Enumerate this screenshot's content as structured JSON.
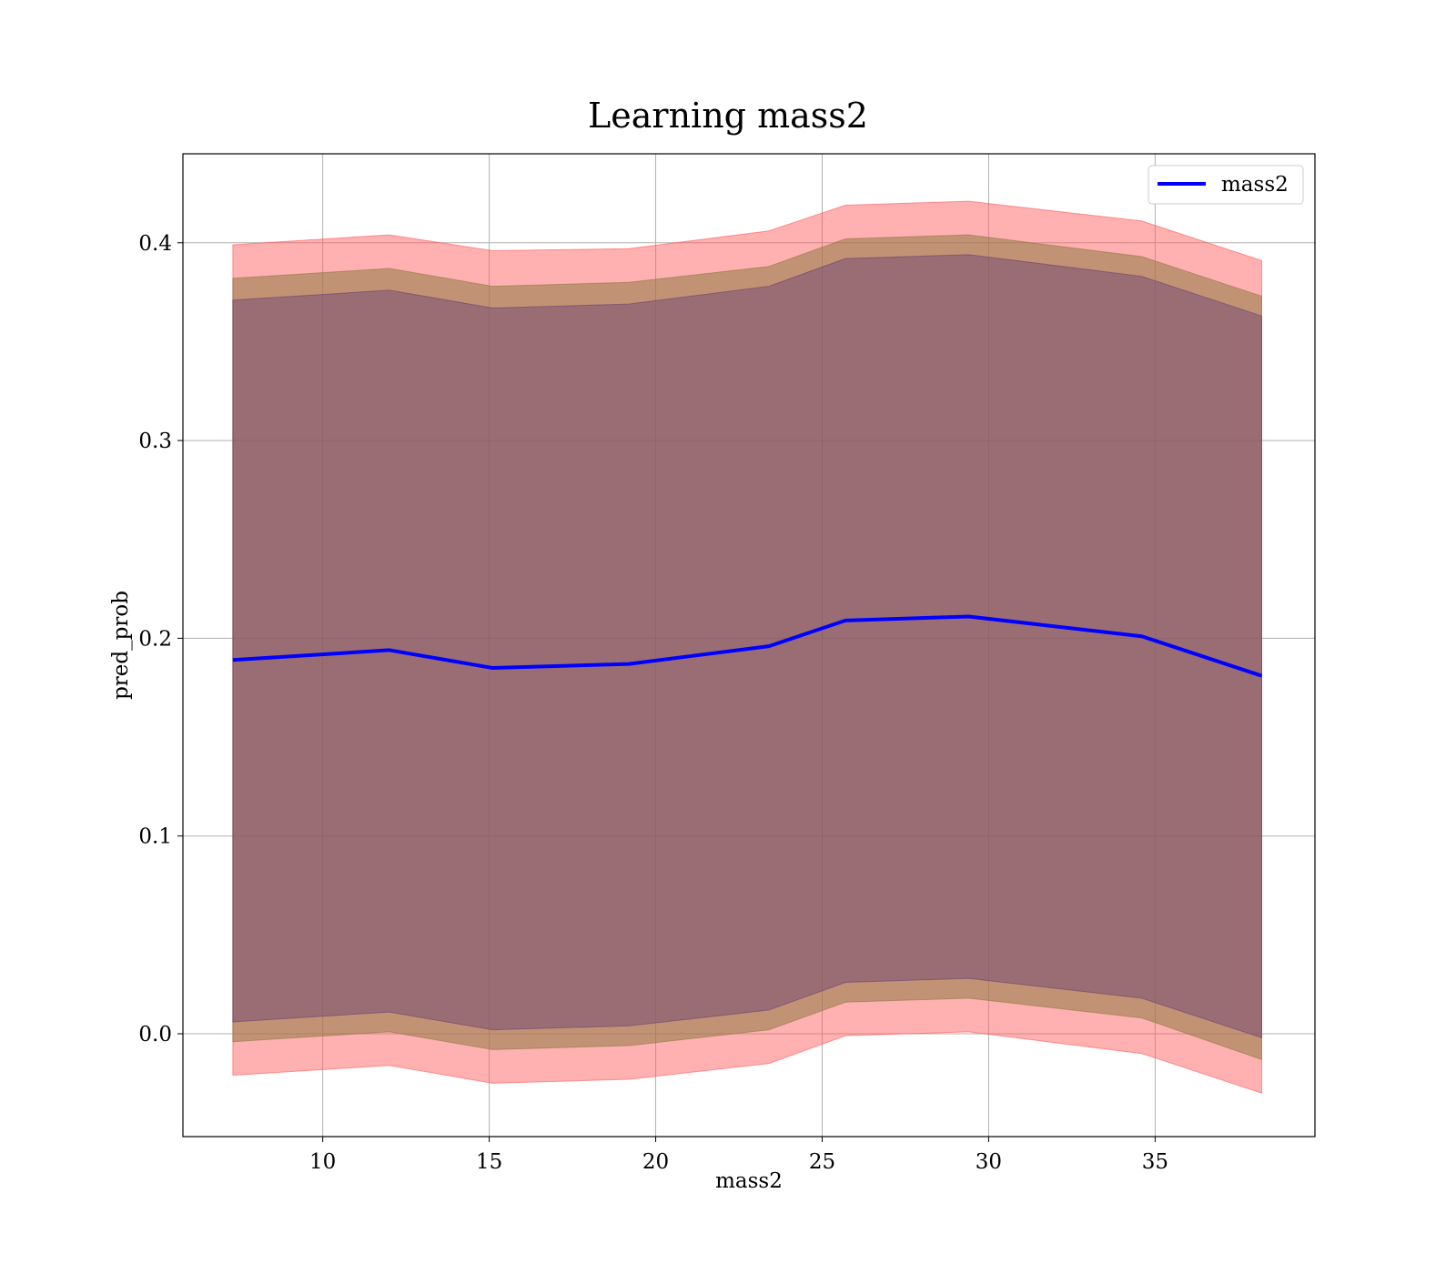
{
  "chart_data": {
    "type": "line",
    "title": "Learning mass2",
    "xlabel": "mass2",
    "ylabel": "pred_prob",
    "xlim": [
      5.8,
      39.8
    ],
    "ylim": [
      -0.052,
      0.445
    ],
    "grid": true,
    "legend_position": "upper right",
    "x_ticks": [
      10,
      15,
      20,
      25,
      30,
      35
    ],
    "y_ticks": [
      0.0,
      0.1,
      0.2,
      0.3,
      0.4
    ],
    "x_tick_labels": [
      "10",
      "15",
      "20",
      "25",
      "30",
      "35"
    ],
    "y_tick_labels": [
      "0.0",
      "0.1",
      "0.2",
      "0.3",
      "0.4"
    ],
    "x": [
      7.3,
      12.0,
      15.1,
      19.2,
      23.4,
      25.7,
      29.4,
      34.6,
      38.2
    ],
    "series": [
      {
        "name": "mass2",
        "color": "#0000ff",
        "values": [
          0.189,
          0.194,
          0.185,
          0.187,
          0.196,
          0.209,
          0.211,
          0.201,
          0.181
        ]
      }
    ],
    "bands": [
      {
        "color": "#ff5a5a",
        "opacity": 0.48,
        "upper": [
          0.399,
          0.404,
          0.396,
          0.397,
          0.406,
          0.419,
          0.421,
          0.411,
          0.391
        ],
        "lower": [
          -0.021,
          -0.016,
          -0.025,
          -0.023,
          -0.015,
          -0.001,
          0.001,
          -0.01,
          -0.03
        ]
      },
      {
        "color": "#8f7a46",
        "opacity": 0.55,
        "upper": [
          0.382,
          0.387,
          0.378,
          0.38,
          0.388,
          0.402,
          0.404,
          0.393,
          0.373
        ],
        "lower": [
          -0.004,
          0.001,
          -0.008,
          -0.006,
          0.002,
          0.016,
          0.018,
          0.008,
          -0.013
        ]
      },
      {
        "color": "#6b4073",
        "opacity": 0.45,
        "upper": [
          0.371,
          0.376,
          0.367,
          0.369,
          0.378,
          0.392,
          0.394,
          0.383,
          0.363
        ],
        "lower": [
          0.006,
          0.011,
          0.002,
          0.004,
          0.012,
          0.026,
          0.028,
          0.018,
          -0.002
        ]
      }
    ]
  }
}
